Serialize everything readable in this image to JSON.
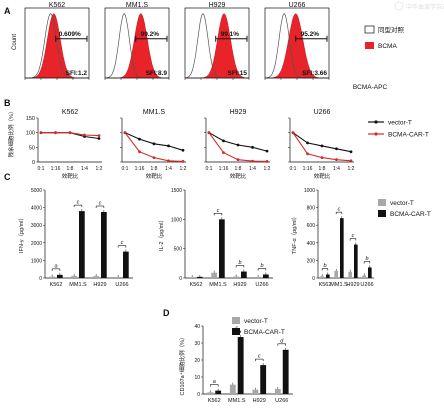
{
  "chart_data": [
    {
      "panel": "A",
      "type": "flow-histogram",
      "xlabel": "BCMA-APC",
      "ylabel": "Count",
      "legend": [
        {
          "label": "同型对照",
          "color": "#ffffff"
        },
        {
          "label": "BCMA",
          "color": "#e8242a"
        }
      ],
      "panels": [
        {
          "title": "K562",
          "percent": "0.609%",
          "sfi": "SFI:1.2",
          "iso_peak": 0.4,
          "bcma_peak": 0.45,
          "iso_width": 0.09,
          "bcma_width": 0.1
        },
        {
          "title": "MM1.S",
          "percent": "99.2%",
          "sfi": "SFI:8.9",
          "iso_peak": 0.3,
          "bcma_peak": 0.56,
          "iso_width": 0.08,
          "bcma_width": 0.1
        },
        {
          "title": "H929",
          "percent": "99.1%",
          "sfi": "SFI:15",
          "iso_peak": 0.28,
          "bcma_peak": 0.61,
          "iso_width": 0.08,
          "bcma_width": 0.1
        },
        {
          "title": "U266",
          "percent": "95.2%",
          "sfi": "SFI:3.66",
          "iso_peak": 0.3,
          "bcma_peak": 0.48,
          "iso_width": 0.08,
          "bcma_width": 0.11
        }
      ]
    },
    {
      "panel": "B",
      "type": "line",
      "ylabel": "残余细胞比例（%）",
      "xlabel": "效靶比",
      "categories": [
        "0:1",
        "1:16",
        "1:8",
        "1:4",
        "1:2"
      ],
      "ylim": [
        0,
        150
      ],
      "yticks": [
        0,
        50,
        100,
        150
      ],
      "legend": [
        {
          "label": "vector-T",
          "color": "#111111"
        },
        {
          "label": "BCMA-CAR-T",
          "color": "#d42a2a"
        }
      ],
      "panels": [
        {
          "title": "K562",
          "series": [
            {
              "name": "vector-T",
              "values": [
                100,
                100,
                100,
                87,
                80
              ]
            },
            {
              "name": "BCMA-CAR-T",
              "values": [
                100,
                100,
                100,
                92,
                90
              ]
            }
          ]
        },
        {
          "title": "MM1.S",
          "series": [
            {
              "name": "vector-T",
              "values": [
                100,
                78,
                62,
                55,
                40
              ]
            },
            {
              "name": "BCMA-CAR-T",
              "values": [
                100,
                35,
                15,
                4,
                2
              ]
            }
          ]
        },
        {
          "title": "H929",
          "series": [
            {
              "name": "vector-T",
              "values": [
                100,
                72,
                58,
                50,
                37
              ]
            },
            {
              "name": "BCMA-CAR-T",
              "values": [
                100,
                32,
                8,
                3,
                2
              ]
            }
          ]
        },
        {
          "title": "U266",
          "series": [
            {
              "name": "vector-T",
              "values": [
                100,
                65,
                55,
                45,
                35
              ]
            },
            {
              "name": "BCMA-CAR-T",
              "values": [
                100,
                28,
                15,
                8,
                4
              ]
            }
          ]
        }
      ]
    },
    {
      "panel": "C",
      "type": "bar",
      "categories": [
        "K562",
        "MM1.S",
        "H929",
        "U266"
      ],
      "legend": [
        {
          "label": "vector-T",
          "color": "#a8a8a8"
        },
        {
          "label": "BCMA-CAR-T",
          "color": "#111111"
        }
      ],
      "panels": [
        {
          "ylabel": "IFN-γ（pg/ml）",
          "ylim": [
            0,
            5000
          ],
          "yticks": [
            0,
            1000,
            2000,
            3000,
            4000,
            5000
          ],
          "series": [
            {
              "name": "vector-T",
              "values": [
                80,
                120,
                110,
                60
              ]
            },
            {
              "name": "BCMA-CAR-T",
              "values": [
                180,
                3800,
                3750,
                1500
              ]
            }
          ],
          "sig": [
            "a",
            "c",
            "c",
            "c"
          ]
        },
        {
          "ylabel": "IL-2（pg/ml）",
          "ylim": [
            0,
            1500
          ],
          "yticks": [
            0,
            500,
            1000,
            1500
          ],
          "series": [
            {
              "name": "vector-T",
              "values": [
                15,
                90,
                25,
                20
              ]
            },
            {
              "name": "BCMA-CAR-T",
              "values": [
                20,
                1000,
                110,
                60
              ]
            }
          ],
          "sig": [
            "",
            "c",
            "b",
            "b"
          ]
        },
        {
          "ylabel": "TNF-α（pg/ml）",
          "ylim": [
            0,
            1000
          ],
          "yticks": [
            0,
            200,
            400,
            600,
            800,
            1000
          ],
          "series": [
            {
              "name": "vector-T",
              "values": [
                20,
                80,
                70,
                30
              ]
            },
            {
              "name": "BCMA-CAR-T",
              "values": [
                40,
                680,
                380,
                120
              ]
            }
          ],
          "sig": [
            "b",
            "c",
            "c",
            "b"
          ]
        }
      ]
    },
    {
      "panel": "D",
      "type": "bar",
      "ylabel": "CD107a⁺细胞比例（%）",
      "categories": [
        "K562",
        "MM1.S",
        "H929",
        "U266"
      ],
      "ylim": [
        0,
        40
      ],
      "yticks": [
        0,
        10,
        20,
        30,
        40
      ],
      "legend": [
        {
          "label": "vector-T",
          "color": "#a8a8a8"
        },
        {
          "label": "BCMA-CAR-T",
          "color": "#111111"
        }
      ],
      "series": [
        {
          "name": "vector-T",
          "values": [
            1,
            5.5,
            2.5,
            3
          ]
        },
        {
          "name": "BCMA-CAR-T",
          "values": [
            2,
            33.5,
            17,
            26
          ]
        }
      ],
      "sig": [
        "a",
        "c",
        "c",
        "d"
      ]
    }
  ],
  "watermark": "中华血液学杂志"
}
